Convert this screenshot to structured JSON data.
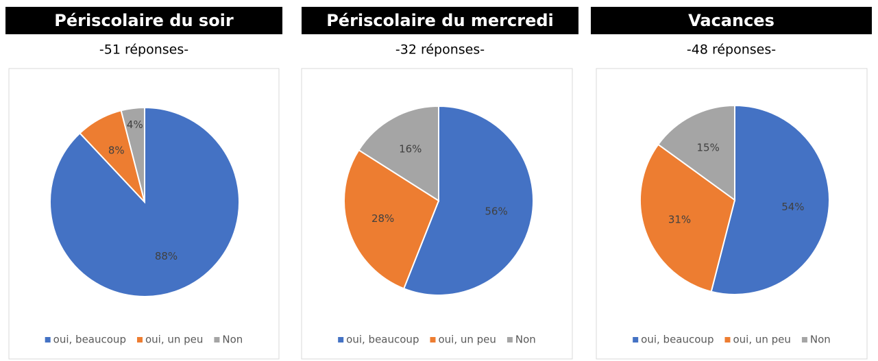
{
  "chart_data": [
    {
      "type": "pie",
      "title": "Périscolaire du soir",
      "subtitle": "-51 réponses-",
      "categories": [
        "oui, beaucoup",
        "oui, un peu",
        "Non"
      ],
      "values": [
        88,
        8,
        4
      ],
      "value_labels": [
        "88%",
        "8%",
        "4%"
      ],
      "colors": [
        "#4472c4",
        "#ed7d31",
        "#a5a5a5"
      ],
      "legend": "bottom"
    },
    {
      "type": "pie",
      "title": "Périscolaire du mercredi",
      "subtitle": "-32 réponses-",
      "categories": [
        "oui, beaucoup",
        "oui, un peu",
        "Non"
      ],
      "values": [
        56,
        28,
        16
      ],
      "value_labels": [
        "56%",
        "28%",
        "16%"
      ],
      "colors": [
        "#4472c4",
        "#ed7d31",
        "#a5a5a5"
      ],
      "legend": "bottom"
    },
    {
      "type": "pie",
      "title": "Vacances",
      "subtitle": "-48 réponses-",
      "categories": [
        "oui, beaucoup",
        "oui, un peu",
        "Non"
      ],
      "values": [
        54,
        31,
        15
      ],
      "value_labels": [
        "54%",
        "31%",
        "15%"
      ],
      "colors": [
        "#4472c4",
        "#ed7d31",
        "#a5a5a5"
      ],
      "legend": "bottom"
    }
  ]
}
